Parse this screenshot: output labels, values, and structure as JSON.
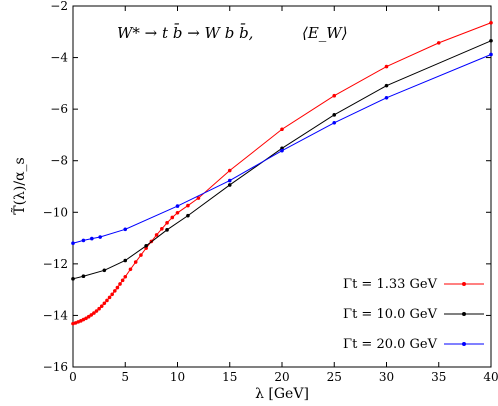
{
  "chart_data": {
    "type": "line",
    "process_label": "W* → t b̄ → W b b̄,",
    "observable_label": "⟨E_W⟩",
    "xlabel": "λ [GeV]",
    "ylabel": "T̃(λ)/α_s",
    "xlim": [
      0,
      40
    ],
    "ylim": [
      -16,
      -2
    ],
    "x_ticks": [
      0,
      5,
      10,
      15,
      20,
      25,
      30,
      35,
      40
    ],
    "y_ticks": [
      -16,
      -14,
      -12,
      -10,
      -8,
      -6,
      -4,
      -2
    ],
    "x_tick_labels": [
      "0",
      "5",
      "10",
      "15",
      "20",
      "25",
      "30",
      "35",
      "40"
    ],
    "y_tick_labels": [
      "−16",
      "−14",
      "−12",
      "−10",
      "−8",
      "−6",
      "−4",
      "−2"
    ],
    "grid": false,
    "legend_position": "bottom-right",
    "series": [
      {
        "name": "Γt = 1.33 GeV",
        "color": "#ff0000",
        "x": [
          0,
          0.25,
          0.5,
          0.75,
          1.0,
          1.25,
          1.5,
          1.75,
          2.0,
          2.25,
          2.5,
          2.75,
          3.0,
          3.25,
          3.5,
          3.75,
          4.0,
          4.25,
          4.5,
          4.75,
          5.0,
          5.5,
          6.0,
          6.5,
          7.0,
          7.5,
          8.0,
          8.5,
          9.0,
          9.5,
          10.0,
          11.0,
          12.0,
          15,
          20,
          25,
          30,
          35,
          40
        ],
        "y": [
          -14.32,
          -14.29,
          -14.25,
          -14.21,
          -14.16,
          -14.11,
          -14.05,
          -13.98,
          -13.91,
          -13.83,
          -13.74,
          -13.64,
          -13.53,
          -13.42,
          -13.3,
          -13.18,
          -13.05,
          -12.92,
          -12.78,
          -12.64,
          -12.5,
          -12.21,
          -11.93,
          -11.66,
          -11.39,
          -11.13,
          -10.88,
          -10.64,
          -10.41,
          -10.2,
          -10.02,
          -9.74,
          -9.45,
          -8.38,
          -6.78,
          -5.48,
          -4.35,
          -3.43,
          -2.65
        ]
      },
      {
        "name": "Γt = 10.0 GeV",
        "color": "#000000",
        "x": [
          0,
          1,
          3,
          5,
          7,
          9,
          11,
          15,
          20,
          25,
          30,
          40
        ],
        "y": [
          -12.58,
          -12.48,
          -12.25,
          -11.87,
          -11.3,
          -10.68,
          -10.13,
          -8.94,
          -7.52,
          -6.22,
          -5.09,
          -3.35
        ]
      },
      {
        "name": "Γt = 20.0 GeV",
        "color": "#0000ff",
        "x": [
          0,
          1,
          1.8,
          2.6,
          5,
          10,
          15,
          20,
          25,
          30,
          40
        ],
        "y": [
          -11.2,
          -11.09,
          -11.02,
          -10.96,
          -10.66,
          -9.76,
          -8.77,
          -7.61,
          -6.53,
          -5.56,
          -3.88
        ]
      }
    ]
  }
}
